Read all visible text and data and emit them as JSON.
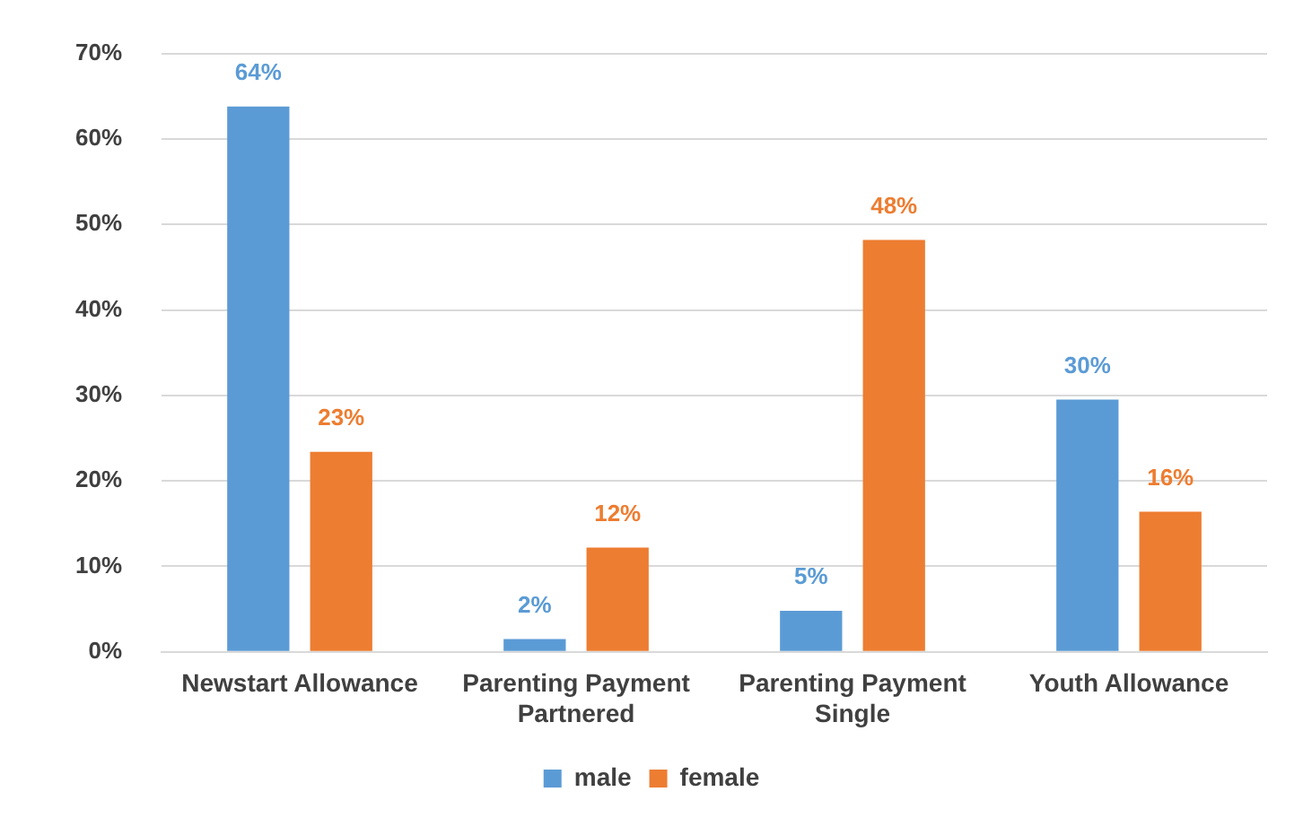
{
  "chart_data": {
    "type": "bar",
    "categories": [
      "Newstart Allowance",
      "Parenting Payment Partnered",
      "Parenting Payment Single",
      "Youth Allowance"
    ],
    "series": [
      {
        "name": "male",
        "color": "#5b9bd5",
        "values": [
          63.8,
          1.5,
          4.8,
          29.5
        ],
        "value_labels": [
          "64%",
          "2%",
          "5%",
          "30%"
        ]
      },
      {
        "name": "female",
        "color": "#ed7d31",
        "values": [
          23.4,
          12.2,
          48.2,
          16.4
        ],
        "value_labels": [
          "23%",
          "12%",
          "48%",
          "16%"
        ]
      }
    ],
    "ylim": [
      0,
      70
    ],
    "yticks": [
      {
        "value": 0,
        "label": "0%"
      },
      {
        "value": 10,
        "label": "10%"
      },
      {
        "value": 20,
        "label": "20%"
      },
      {
        "value": 30,
        "label": "30%"
      },
      {
        "value": 40,
        "label": "40%"
      },
      {
        "value": 50,
        "label": "50%"
      },
      {
        "value": 60,
        "label": "60%"
      },
      {
        "value": 70,
        "label": "70%"
      }
    ],
    "grid": "y",
    "legend": "bottom"
  }
}
